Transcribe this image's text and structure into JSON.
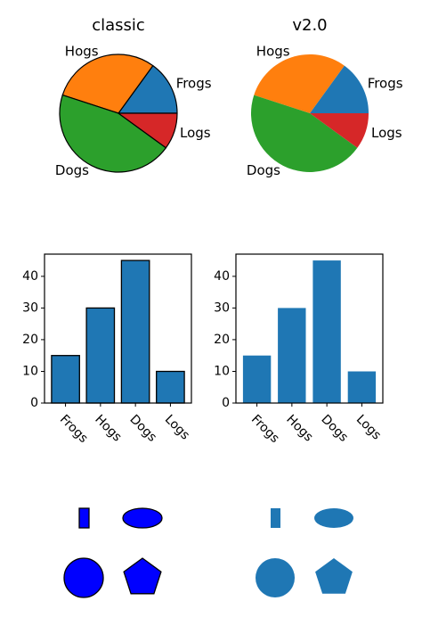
{
  "chart_data": [
    {
      "type": "pie",
      "title": "classic",
      "style": "classic",
      "labels": [
        "Frogs",
        "Hogs",
        "Dogs",
        "Logs"
      ],
      "values": [
        15,
        30,
        45,
        10
      ],
      "colors": [
        "#1f77b4",
        "#ff7f0e",
        "#2ca02c",
        "#d62728"
      ],
      "edgecolor": "#000000",
      "startangle": 0
    },
    {
      "type": "pie",
      "title": "v2.0",
      "style": "v2.0",
      "labels": [
        "Frogs",
        "Hogs",
        "Dogs",
        "Logs"
      ],
      "values": [
        15,
        30,
        45,
        10
      ],
      "colors": [
        "#1f77b4",
        "#ff7f0e",
        "#2ca02c",
        "#d62728"
      ],
      "edgecolor": "none",
      "startangle": 0
    },
    {
      "type": "bar",
      "style": "classic",
      "categories": [
        "Frogs",
        "Hogs",
        "Dogs",
        "Logs"
      ],
      "values": [
        15,
        30,
        45,
        10
      ],
      "ylim": [
        0,
        47
      ],
      "yticks": [
        0,
        10,
        20,
        30,
        40
      ],
      "color": "#1f77b4",
      "edgecolor": "#000000",
      "xtick_rotation": -45
    },
    {
      "type": "bar",
      "style": "v2.0",
      "categories": [
        "Frogs",
        "Hogs",
        "Dogs",
        "Logs"
      ],
      "values": [
        15,
        30,
        45,
        10
      ],
      "ylim": [
        0,
        47
      ],
      "yticks": [
        0,
        10,
        20,
        30,
        40
      ],
      "color": "#1f77b4",
      "edgecolor": "none",
      "xtick_rotation": -45
    }
  ],
  "patches": [
    {
      "style": "classic",
      "fill": "#0000ff",
      "edgecolor": "#000000",
      "shapes": [
        "rectangle",
        "ellipse",
        "circle",
        "pentagon"
      ]
    },
    {
      "style": "v2.0",
      "fill": "#1f77b4",
      "edgecolor": "none",
      "shapes": [
        "rectangle",
        "ellipse",
        "circle",
        "pentagon"
      ]
    }
  ]
}
